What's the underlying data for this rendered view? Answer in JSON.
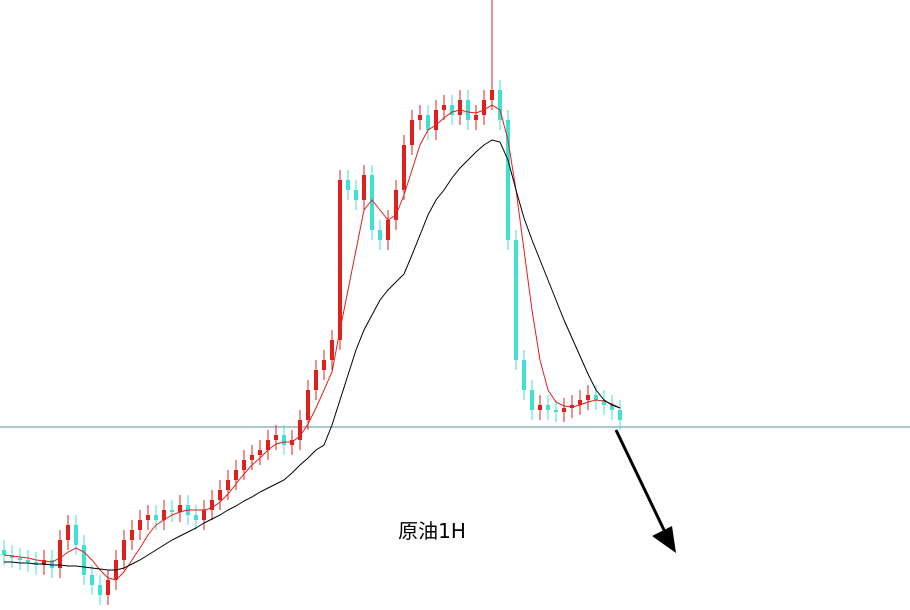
{
  "chart_data": {
    "type": "candlestick",
    "title": "原油1H",
    "ylim": [
      0,
      610
    ],
    "hline": 183,
    "up_color": "#e0201c",
    "down_color": "#40e0d0",
    "open": [
      60,
      55,
      52,
      50,
      48,
      45,
      50,
      42,
      70,
      85,
      65,
      35,
      25,
      15,
      30,
      50,
      70,
      80,
      90,
      95,
      90,
      100,
      98,
      105,
      95,
      90,
      100,
      110,
      120,
      130,
      140,
      150,
      155,
      160,
      170,
      175,
      165,
      170,
      190,
      220,
      240,
      250,
      270,
      430,
      420,
      410,
      435,
      380,
      370,
      390,
      420,
      465,
      490,
      495,
      480,
      500,
      505,
      495,
      510,
      490,
      495,
      510,
      520,
      490,
      370,
      250,
      220,
      200,
      205,
      200,
      198,
      202,
      205,
      210,
      215,
      210,
      205,
      200
    ],
    "high": [
      70,
      65,
      62,
      60,
      58,
      60,
      60,
      80,
      95,
      95,
      75,
      45,
      35,
      40,
      60,
      80,
      90,
      100,
      105,
      105,
      110,
      110,
      115,
      115,
      105,
      110,
      120,
      130,
      140,
      150,
      160,
      165,
      170,
      180,
      185,
      185,
      180,
      200,
      230,
      250,
      260,
      280,
      440,
      440,
      430,
      445,
      445,
      390,
      400,
      430,
      475,
      500,
      505,
      505,
      510,
      515,
      515,
      520,
      520,
      505,
      520,
      610,
      530,
      500,
      380,
      260,
      230,
      215,
      215,
      210,
      212,
      215,
      220,
      225,
      225,
      220,
      215,
      210
    ],
    "low": [
      45,
      42,
      40,
      38,
      35,
      35,
      32,
      32,
      60,
      55,
      25,
      15,
      5,
      5,
      20,
      40,
      60,
      70,
      80,
      80,
      80,
      88,
      88,
      85,
      80,
      80,
      90,
      100,
      110,
      120,
      130,
      140,
      145,
      150,
      160,
      155,
      155,
      160,
      180,
      210,
      230,
      240,
      260,
      410,
      400,
      400,
      370,
      360,
      360,
      380,
      410,
      455,
      480,
      470,
      470,
      490,
      485,
      485,
      480,
      480,
      485,
      500,
      480,
      360,
      240,
      210,
      190,
      190,
      190,
      188,
      188,
      192,
      195,
      200,
      200,
      195,
      190,
      180
    ],
    "close": [
      55,
      52,
      50,
      48,
      45,
      50,
      42,
      70,
      85,
      65,
      35,
      25,
      15,
      30,
      50,
      70,
      80,
      90,
      95,
      90,
      100,
      98,
      105,
      95,
      90,
      100,
      110,
      120,
      130,
      140,
      150,
      155,
      160,
      170,
      175,
      165,
      170,
      190,
      220,
      240,
      250,
      270,
      430,
      420,
      410,
      435,
      380,
      370,
      390,
      420,
      465,
      490,
      495,
      480,
      500,
      505,
      495,
      510,
      490,
      495,
      510,
      520,
      490,
      370,
      250,
      220,
      200,
      205,
      200,
      198,
      202,
      205,
      210,
      215,
      210,
      205,
      200,
      190
    ],
    "series": [
      {
        "color": "#e0201c",
        "values": [
          55,
          54,
          53,
          52,
          50,
          49,
          48,
          52,
          58,
          62,
          58,
          50,
          40,
          32,
          30,
          38,
          50,
          62,
          75,
          85,
          90,
          95,
          98,
          100,
          100,
          100,
          102,
          108,
          116,
          126,
          136,
          145,
          152,
          160,
          166,
          168,
          168,
          174,
          186,
          202,
          220,
          238,
          280,
          320,
          360,
          400,
          410,
          400,
          390,
          395,
          415,
          440,
          465,
          480,
          485,
          492,
          498,
          500,
          498,
          497,
          500,
          505,
          500,
          470,
          420,
          360,
          300,
          250,
          220,
          208,
          204,
          203,
          205,
          208,
          210,
          209,
          206,
          202
        ]
      },
      {
        "color": "#000000",
        "values": [
          48,
          48,
          47,
          47,
          46,
          46,
          45,
          45,
          44,
          44,
          43,
          42,
          41,
          40,
          40,
          42,
          46,
          50,
          55,
          60,
          65,
          70,
          74,
          78,
          82,
          87,
          91,
          95,
          100,
          104,
          109,
          113,
          118,
          122,
          126,
          130,
          137,
          145,
          152,
          160,
          165,
          185,
          210,
          235,
          260,
          280,
          295,
          310,
          320,
          328,
          336,
          355,
          375,
          395,
          410,
          420,
          432,
          442,
          450,
          458,
          465,
          470,
          468,
          450,
          420,
          392,
          370,
          350,
          330,
          310,
          290,
          272,
          254,
          236,
          220,
          210,
          205,
          202
        ]
      }
    ]
  }
}
